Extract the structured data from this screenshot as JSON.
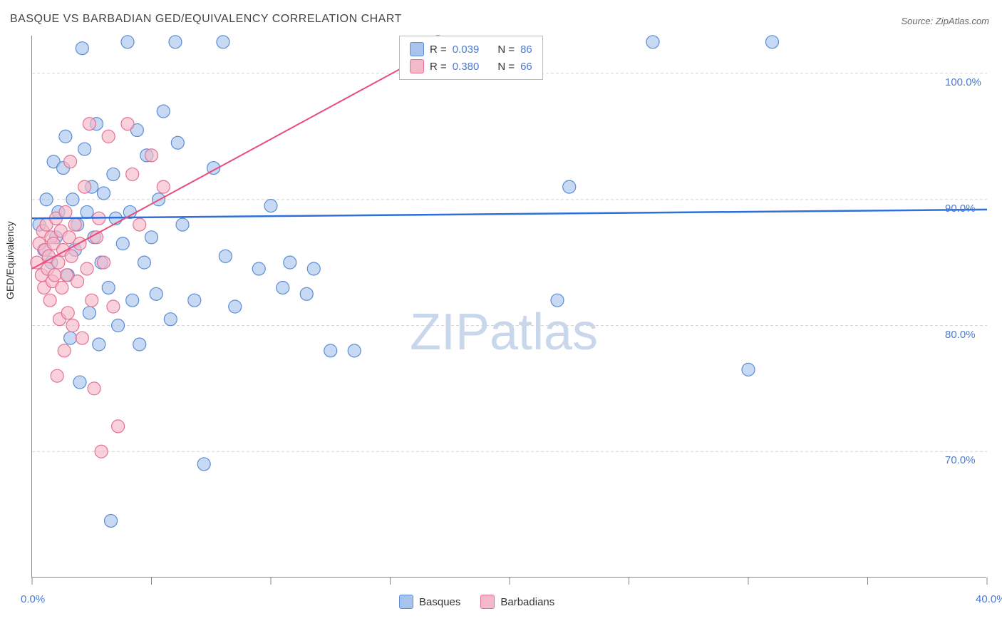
{
  "title": "BASQUE VS BARBADIAN GED/EQUIVALENCY CORRELATION CHART",
  "source": "Source: ZipAtlas.com",
  "ylabel": "GED/Equivalency",
  "watermark1": "ZIP",
  "watermark2": "atlas",
  "chart": {
    "type": "scatter",
    "xlim": [
      0,
      40
    ],
    "ylim": [
      60,
      103
    ],
    "xtick_positions": [
      0,
      5,
      10,
      15,
      20,
      25,
      30,
      35,
      40
    ],
    "xtick_labels": {
      "0": "0.0%",
      "40": "40.0%"
    },
    "ytick_positions": [
      70,
      80,
      90,
      100
    ],
    "ytick_labels": [
      "70.0%",
      "80.0%",
      "90.0%",
      "100.0%"
    ],
    "grid_color": "#d5d5d5",
    "background_color": "#ffffff",
    "series": [
      {
        "name": "Basques",
        "fill": "#a9c4ec",
        "stroke": "#5b8cd6",
        "opacity": 0.65,
        "marker_radius": 9,
        "R": "0.039",
        "N": "86",
        "trend": {
          "x1": 0,
          "y1": 88.5,
          "x2": 40,
          "y2": 89.2,
          "stroke": "#2e6fd9",
          "width": 2.5
        },
        "points": [
          [
            0.3,
            88
          ],
          [
            0.5,
            86
          ],
          [
            0.6,
            90
          ],
          [
            0.8,
            85
          ],
          [
            0.9,
            93
          ],
          [
            1.0,
            87
          ],
          [
            1.1,
            89
          ],
          [
            1.3,
            92.5
          ],
          [
            1.4,
            95
          ],
          [
            1.5,
            84
          ],
          [
            1.6,
            79
          ],
          [
            1.7,
            90
          ],
          [
            1.8,
            86
          ],
          [
            1.9,
            88
          ],
          [
            2.0,
            75.5
          ],
          [
            2.1,
            102
          ],
          [
            2.2,
            94
          ],
          [
            2.3,
            89
          ],
          [
            2.4,
            81
          ],
          [
            2.5,
            91
          ],
          [
            2.6,
            87
          ],
          [
            2.7,
            96
          ],
          [
            2.8,
            78.5
          ],
          [
            2.9,
            85
          ],
          [
            3.0,
            90.5
          ],
          [
            3.2,
            83
          ],
          [
            3.3,
            64.5
          ],
          [
            3.4,
            92
          ],
          [
            3.5,
            88.5
          ],
          [
            3.6,
            80
          ],
          [
            3.8,
            86.5
          ],
          [
            4.0,
            102.5
          ],
          [
            4.1,
            89
          ],
          [
            4.2,
            82
          ],
          [
            4.4,
            95.5
          ],
          [
            4.5,
            78.5
          ],
          [
            4.7,
            85
          ],
          [
            4.8,
            93.5
          ],
          [
            5.0,
            87
          ],
          [
            5.2,
            82.5
          ],
          [
            5.3,
            90
          ],
          [
            5.5,
            97
          ],
          [
            5.8,
            80.5
          ],
          [
            6.0,
            102.5
          ],
          [
            6.1,
            94.5
          ],
          [
            6.3,
            88
          ],
          [
            6.8,
            82
          ],
          [
            7.2,
            69
          ],
          [
            7.6,
            92.5
          ],
          [
            8.0,
            102.5
          ],
          [
            8.1,
            85.5
          ],
          [
            8.5,
            81.5
          ],
          [
            9.5,
            84.5
          ],
          [
            10.0,
            89.5
          ],
          [
            10.5,
            83
          ],
          [
            10.8,
            85
          ],
          [
            11.5,
            82.5
          ],
          [
            11.8,
            84.5
          ],
          [
            12.5,
            78
          ],
          [
            13.5,
            78
          ],
          [
            17.0,
            102.5
          ],
          [
            22.5,
            91
          ],
          [
            22.0,
            82
          ],
          [
            26.0,
            102.5
          ],
          [
            30.0,
            76.5
          ],
          [
            31.0,
            102.5
          ]
        ]
      },
      {
        "name": "Barbadians",
        "fill": "#f4b9c8",
        "stroke": "#e47194",
        "opacity": 0.65,
        "marker_radius": 9,
        "R": "0.380",
        "N": "66",
        "trend": {
          "x1": 0,
          "y1": 84.5,
          "x2": 17.5,
          "y2": 102.5,
          "stroke": "#e94b7a",
          "width": 2
        },
        "points": [
          [
            0.2,
            85
          ],
          [
            0.3,
            86.5
          ],
          [
            0.4,
            84
          ],
          [
            0.45,
            87.5
          ],
          [
            0.5,
            83
          ],
          [
            0.55,
            86
          ],
          [
            0.6,
            88
          ],
          [
            0.65,
            84.5
          ],
          [
            0.7,
            85.5
          ],
          [
            0.75,
            82
          ],
          [
            0.8,
            87
          ],
          [
            0.85,
            83.5
          ],
          [
            0.9,
            86.5
          ],
          [
            0.95,
            84
          ],
          [
            1.0,
            88.5
          ],
          [
            1.05,
            76
          ],
          [
            1.1,
            85
          ],
          [
            1.15,
            80.5
          ],
          [
            1.2,
            87.5
          ],
          [
            1.25,
            83
          ],
          [
            1.3,
            86
          ],
          [
            1.35,
            78
          ],
          [
            1.4,
            89
          ],
          [
            1.45,
            84
          ],
          [
            1.5,
            81
          ],
          [
            1.55,
            87
          ],
          [
            1.6,
            93
          ],
          [
            1.65,
            85.5
          ],
          [
            1.7,
            80
          ],
          [
            1.8,
            88
          ],
          [
            1.9,
            83.5
          ],
          [
            2.0,
            86.5
          ],
          [
            2.1,
            79
          ],
          [
            2.2,
            91
          ],
          [
            2.3,
            84.5
          ],
          [
            2.4,
            96
          ],
          [
            2.5,
            82
          ],
          [
            2.6,
            75
          ],
          [
            2.7,
            87
          ],
          [
            2.8,
            88.5
          ],
          [
            2.9,
            70
          ],
          [
            3.0,
            85
          ],
          [
            3.2,
            95
          ],
          [
            3.4,
            81.5
          ],
          [
            3.6,
            72
          ],
          [
            4.0,
            96
          ],
          [
            4.2,
            92
          ],
          [
            4.5,
            88
          ],
          [
            5.0,
            93.5
          ],
          [
            5.5,
            91
          ]
        ]
      }
    ]
  },
  "legend_bottom": [
    {
      "label": "Basques",
      "fill": "#a9c4ec",
      "stroke": "#5b8cd6"
    },
    {
      "label": "Barbadians",
      "fill": "#f4b9c8",
      "stroke": "#e47194"
    }
  ]
}
